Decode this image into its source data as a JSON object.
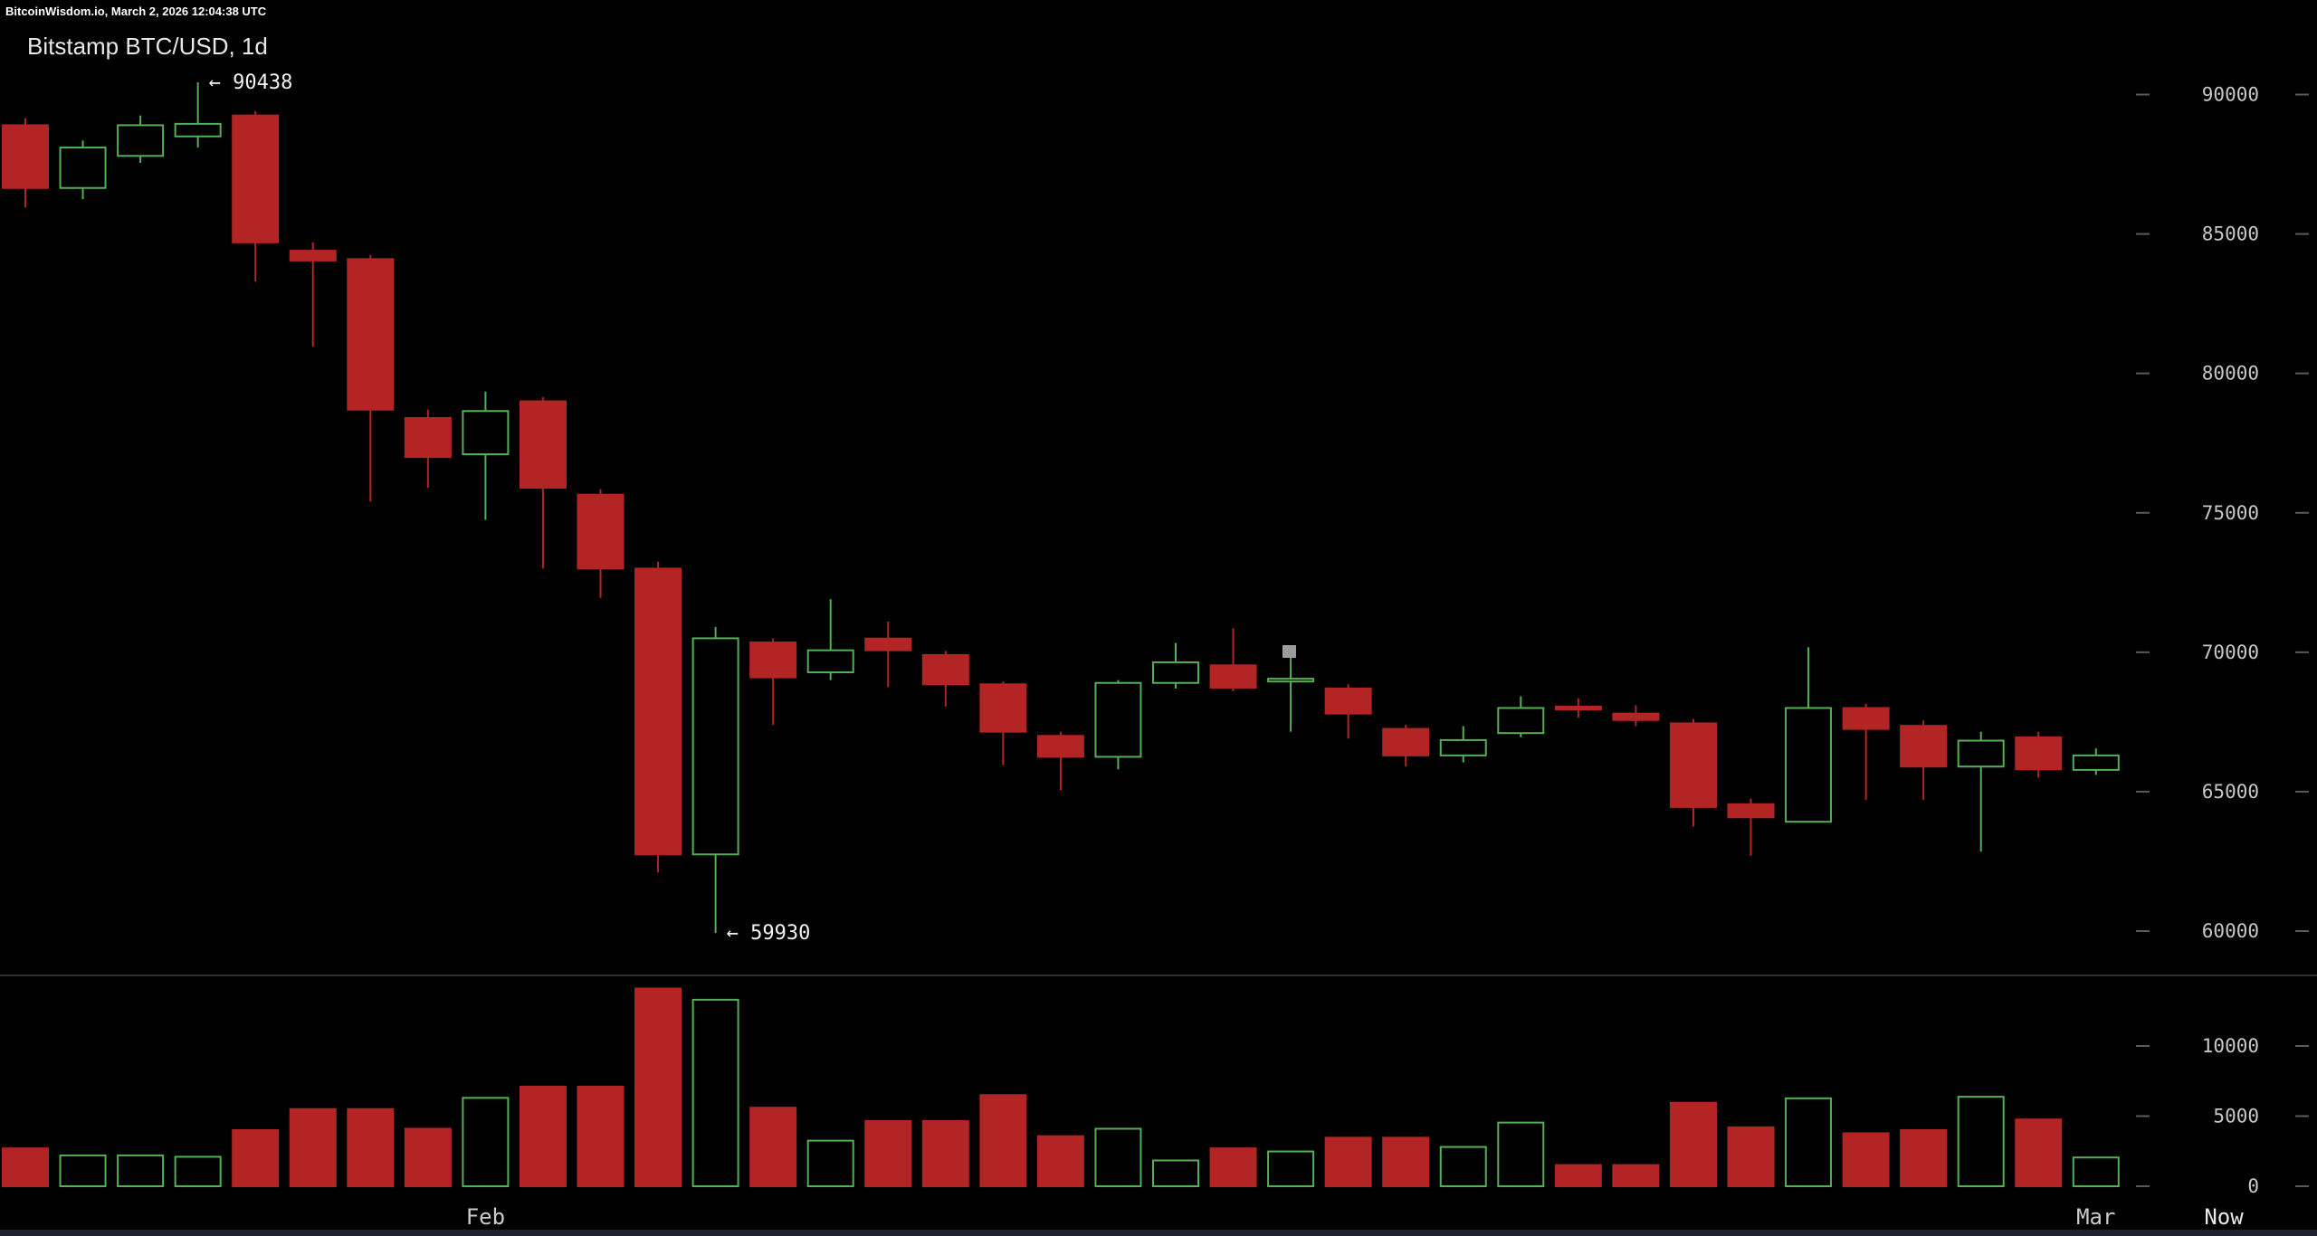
{
  "header": {
    "status_text": "BitcoinWisdom.io, March 2, 2026 12:04:38 UTC",
    "title": "Bitstamp BTC/USD, 1d"
  },
  "colors": {
    "background": "#000000",
    "up": "#55b055",
    "down": "#b32424",
    "axis_text": "#c8c8c8",
    "tick": "#5a5a5a",
    "annotation": "#f2f2f2",
    "separator": "#2f2f2f",
    "time_text": "#cccccc",
    "now_text": "#e8e8e8",
    "cursor": "#9b9b9b"
  },
  "chart_data": {
    "type": "candlestick",
    "title": "Bitstamp BTC/USD, 1d",
    "exchange": "Bitstamp",
    "pair": "BTC/USD",
    "interval": "1d",
    "xlabel": "",
    "ylabel": "",
    "grid": false,
    "legend_position": "none",
    "price_axis": {
      "ticks": [
        90000,
        85000,
        80000,
        75000,
        70000,
        65000,
        60000
      ],
      "ylim": [
        58500,
        91500
      ]
    },
    "volume_axis": {
      "ticks": [
        10000,
        5000,
        0
      ],
      "ylim": [
        0,
        15000
      ]
    },
    "time_labels": [
      {
        "label": "Feb",
        "candle_index": 8
      },
      {
        "label": "Mar",
        "candle_index": 36
      }
    ],
    "now_label": "Now",
    "annotations": [
      {
        "label": "90438",
        "arrow": "←",
        "candle_index": 3,
        "price": 90438,
        "type": "high"
      },
      {
        "label": "59930",
        "arrow": "←",
        "candle_index": 12,
        "price": 59930,
        "type": "low"
      }
    ],
    "ohlc_format": [
      "open",
      "high",
      "low",
      "close",
      "volume"
    ],
    "candles": [
      [
        88900,
        89150,
        85950,
        86650,
        2700
      ],
      [
        86650,
        88350,
        86250,
        88100,
        2200
      ],
      [
        87800,
        89250,
        87550,
        88900,
        2200
      ],
      [
        88500,
        90438,
        88100,
        88950,
        2100
      ],
      [
        89250,
        89400,
        83300,
        84700,
        4000
      ],
      [
        84400,
        84700,
        80950,
        84050,
        5500
      ],
      [
        84100,
        84250,
        75400,
        78700,
        5500
      ],
      [
        78400,
        78700,
        75900,
        77000,
        4100
      ],
      [
        77100,
        79350,
        74750,
        78650,
        6300
      ],
      [
        79000,
        79150,
        73000,
        75900,
        7100
      ],
      [
        75650,
        75850,
        71950,
        73000,
        7100
      ],
      [
        73000,
        73250,
        62100,
        62750,
        14100
      ],
      [
        62750,
        70900,
        59930,
        70500,
        13300
      ],
      [
        70350,
        70500,
        67400,
        69100,
        5600
      ],
      [
        69280,
        71900,
        69000,
        70070,
        3250
      ],
      [
        70490,
        71100,
        68750,
        70070,
        4650
      ],
      [
        69900,
        70050,
        68050,
        68850,
        4650
      ],
      [
        68850,
        68950,
        65950,
        67150,
        6500
      ],
      [
        67000,
        67150,
        65050,
        66250,
        3570
      ],
      [
        66250,
        69000,
        65800,
        68900,
        4100
      ],
      [
        68900,
        70330,
        68700,
        69640,
        1840
      ],
      [
        69530,
        70860,
        68600,
        68730,
        2700
      ],
      [
        68950,
        70070,
        67150,
        69050,
        2480
      ],
      [
        68700,
        68850,
        66900,
        67800,
        3460
      ],
      [
        67250,
        67400,
        65900,
        66300,
        3460
      ],
      [
        66300,
        67350,
        66050,
        66850,
        2800
      ],
      [
        67100,
        68420,
        66950,
        68000,
        4540
      ],
      [
        68050,
        68350,
        67650,
        67950,
        1510
      ],
      [
        67800,
        68100,
        67350,
        67570,
        1510
      ],
      [
        67450,
        67600,
        63750,
        64450,
        5950
      ],
      [
        64550,
        64750,
        62700,
        64080,
        4200
      ],
      [
        63920,
        70180,
        63900,
        68000,
        6270
      ],
      [
        68000,
        68150,
        64700,
        67250,
        3780
      ],
      [
        67360,
        67550,
        64700,
        65900,
        4000
      ],
      [
        65900,
        67150,
        62850,
        66830,
        6380
      ],
      [
        66950,
        67150,
        65500,
        65800,
        4760
      ],
      [
        65780,
        66550,
        65600,
        66300,
        2050
      ]
    ]
  }
}
